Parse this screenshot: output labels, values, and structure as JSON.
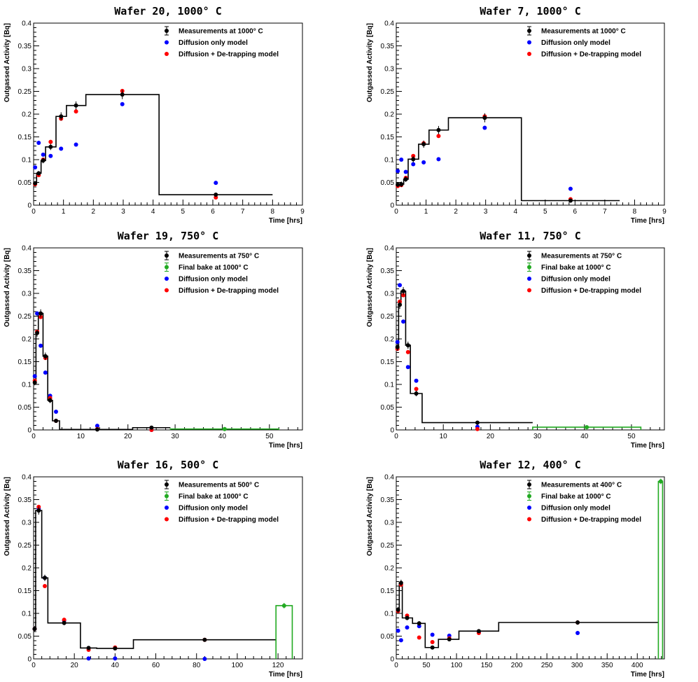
{
  "colors": {
    "measurement": "#000000",
    "final_bake": "#22aa22",
    "diffusion": "#0000ff",
    "detrapping": "#ff0000"
  },
  "chart_data": [
    {
      "type": "scatter",
      "title": "Wafer 20, 1000° C",
      "xlabel": "Time [hrs]",
      "ylabel": "Outgassed Activity [Bq]",
      "xlim": [
        0,
        9
      ],
      "ylim": [
        0,
        0.4
      ],
      "xticks": [
        0,
        1,
        2,
        3,
        4,
        5,
        6,
        7,
        8,
        9
      ],
      "xtick_labels": [
        "0",
        "1",
        "2",
        "3",
        "4",
        "5",
        "6",
        "7",
        "8",
        "9"
      ],
      "yticks": [
        0,
        0.05,
        0.1,
        0.15,
        0.2,
        0.25,
        0.3,
        0.35,
        0.4
      ],
      "ytick_labels": [
        "0",
        "0.05",
        "0.1",
        "0.15",
        "0.2",
        "0.25",
        "0.3",
        "0.35",
        "0.4"
      ],
      "legend": [
        "Measurements at 1000° C",
        "Diffusion only model",
        "Diffusion + De-trapping model"
      ],
      "measurement_steps": {
        "edges": [
          0,
          0.1,
          0.25,
          0.4,
          0.75,
          1.1,
          1.75,
          4.2,
          8.0
        ],
        "values": [
          0.048,
          0.07,
          0.098,
          0.128,
          0.195,
          0.219,
          0.243,
          0.023
        ]
      },
      "measurements": {
        "x": [
          0.05,
          0.17,
          0.32,
          0.57,
          0.92,
          1.42,
          2.97,
          6.1
        ],
        "y": [
          0.048,
          0.07,
          0.098,
          0.128,
          0.195,
          0.219,
          0.243,
          0.023
        ],
        "err": [
          0.005,
          0.005,
          0.006,
          0.007,
          0.009,
          0.009,
          0.01,
          0.003
        ]
      },
      "diffusion": {
        "x": [
          0.05,
          0.17,
          0.32,
          0.57,
          0.92,
          1.42,
          2.97,
          6.1
        ],
        "y": [
          0.083,
          0.137,
          0.111,
          0.108,
          0.124,
          0.133,
          0.222,
          0.049
        ]
      },
      "detrapping": {
        "x": [
          0.05,
          0.17,
          0.32,
          0.57,
          0.92,
          1.42,
          2.97,
          6.1
        ],
        "y": [
          0.046,
          0.066,
          0.1,
          0.139,
          0.19,
          0.206,
          0.251,
          0.017
        ]
      }
    },
    {
      "type": "scatter",
      "title": "Wafer 7, 1000° C",
      "xlabel": "Time [hrs]",
      "ylabel": "Outgassed Activity [Bq]",
      "xlim": [
        0,
        9
      ],
      "ylim": [
        0,
        0.4
      ],
      "xticks": [
        0,
        1,
        2,
        3,
        4,
        5,
        6,
        7,
        8,
        9
      ],
      "xtick_labels": [
        "0",
        "1",
        "2",
        "3",
        "4",
        "5",
        "6",
        "7",
        "8",
        "9"
      ],
      "yticks": [
        0,
        0.05,
        0.1,
        0.15,
        0.2,
        0.25,
        0.3,
        0.35,
        0.4
      ],
      "ytick_labels": [
        "0",
        "0.05",
        "0.1",
        "0.15",
        "0.2",
        "0.25",
        "0.3",
        "0.35",
        "0.4"
      ],
      "legend": [
        "Measurements at 1000° C",
        "Diffusion only model",
        "Diffusion + De-trapping model"
      ],
      "measurement_steps": {
        "edges": [
          0,
          0.1,
          0.25,
          0.4,
          0.75,
          1.1,
          1.75,
          4.2,
          7.5
        ],
        "values": [
          0.045,
          0.046,
          0.057,
          0.101,
          0.134,
          0.165,
          0.192,
          0.01
        ]
      },
      "measurements": {
        "x": [
          0.05,
          0.17,
          0.32,
          0.57,
          0.92,
          1.42,
          2.97,
          5.85
        ],
        "y": [
          0.045,
          0.046,
          0.057,
          0.101,
          0.134,
          0.165,
          0.192,
          0.01
        ],
        "err": [
          0.005,
          0.006,
          0.006,
          0.007,
          0.008,
          0.009,
          0.01,
          0.003
        ]
      },
      "diffusion": {
        "x": [
          0.05,
          0.17,
          0.32,
          0.57,
          0.92,
          1.42,
          2.97,
          5.85
        ],
        "y": [
          0.075,
          0.1,
          0.073,
          0.09,
          0.094,
          0.101,
          0.17,
          0.036
        ]
      },
      "detrapping": {
        "x": [
          0.05,
          0.17,
          0.32,
          0.57,
          0.92,
          1.42,
          2.97,
          5.85
        ],
        "y": [
          0.042,
          0.044,
          0.06,
          0.108,
          0.136,
          0.152,
          0.195,
          0.013
        ]
      }
    },
    {
      "type": "scatter",
      "title": "Wafer 19, 750° C",
      "xlabel": "Time [hrs]",
      "ylabel": "Outgassed Activity [Bq]",
      "xlim": [
        0,
        57
      ],
      "ylim": [
        0,
        0.4
      ],
      "xticks": [
        0,
        10,
        20,
        30,
        40,
        50
      ],
      "xtick_labels": [
        "0",
        "10",
        "20",
        "30",
        "40",
        "50"
      ],
      "yticks": [
        0,
        0.05,
        0.1,
        0.15,
        0.2,
        0.25,
        0.3,
        0.35,
        0.4
      ],
      "ytick_labels": [
        "0",
        "0.05",
        "0.1",
        "0.15",
        "0.2",
        "0.25",
        "0.3",
        "0.35",
        "0.4"
      ],
      "legend": [
        "Measurements at 750° C",
        "Final bake at 1000° C",
        "Diffusion only model",
        "Diffusion + De-trapping model"
      ],
      "measurement_steps": {
        "edges": [
          0,
          0.5,
          1.0,
          2.0,
          3.0,
          4.0,
          5.5,
          21.0,
          29.0
        ],
        "values": [
          0.104,
          0.213,
          0.256,
          0.162,
          0.065,
          0.02,
          0.001,
          0.005
        ]
      },
      "measurements": {
        "x": [
          0.25,
          0.75,
          1.5,
          2.5,
          3.5,
          4.75,
          13.5,
          25.0
        ],
        "y": [
          0.104,
          0.213,
          0.256,
          0.162,
          0.065,
          0.02,
          0.001,
          0.005
        ],
        "err": [
          0.006,
          0.008,
          0.009,
          0.008,
          0.006,
          0.004,
          0.001,
          0.002
        ]
      },
      "final_bake_steps": {
        "edges": [
          29.0,
          52.0
        ],
        "values": [
          0.002
        ]
      },
      "final_bake": {
        "x": [
          40.5
        ],
        "y": [
          0.002
        ],
        "err": [
          0.002
        ]
      },
      "diffusion": {
        "x": [
          0.25,
          0.75,
          1.5,
          2.5,
          3.5,
          4.75,
          13.5,
          25.0
        ],
        "y": [
          0.118,
          0.256,
          0.185,
          0.126,
          0.075,
          0.04,
          0.009,
          0.0
        ]
      },
      "detrapping": {
        "x": [
          0.25,
          0.75,
          1.5,
          2.5,
          3.5,
          4.75,
          13.5,
          25.0
        ],
        "y": [
          0.108,
          0.216,
          0.248,
          0.158,
          0.07,
          0.02,
          0.002,
          0.0
        ]
      }
    },
    {
      "type": "scatter",
      "title": "Wafer 11, 750° C",
      "xlabel": "Time [hrs]",
      "ylabel": "Outgassed Activity [Bq]",
      "xlim": [
        0,
        57
      ],
      "ylim": [
        0,
        0.4
      ],
      "xticks": [
        0,
        10,
        20,
        30,
        40,
        50
      ],
      "xtick_labels": [
        "0",
        "10",
        "20",
        "30",
        "40",
        "50"
      ],
      "yticks": [
        0,
        0.05,
        0.1,
        0.15,
        0.2,
        0.25,
        0.3,
        0.35,
        0.4
      ],
      "ytick_labels": [
        "0",
        "0.05",
        "0.1",
        "0.15",
        "0.2",
        "0.25",
        "0.3",
        "0.35",
        "0.4"
      ],
      "legend": [
        "Measurements at 750° C",
        "Final bake at 1000° C",
        "Diffusion only model",
        "Diffusion + De-trapping model"
      ],
      "measurement_steps": {
        "edges": [
          0,
          0.5,
          1.0,
          2.0,
          3.0,
          5.5,
          29.0
        ],
        "values": [
          0.182,
          0.275,
          0.305,
          0.186,
          0.08,
          0.016
        ]
      },
      "measurements": {
        "x": [
          0.25,
          0.75,
          1.5,
          2.5,
          4.25,
          17.25
        ],
        "y": [
          0.182,
          0.275,
          0.305,
          0.186,
          0.08,
          0.016
        ],
        "err": [
          0.008,
          0.009,
          0.009,
          0.008,
          0.006,
          0.003
        ]
      },
      "final_bake_steps": {
        "edges": [
          29.0,
          52.0
        ],
        "values": [
          0.006
        ]
      },
      "final_bake": {
        "x": [
          40.5
        ],
        "y": [
          0.006
        ],
        "err": [
          0.002
        ]
      },
      "diffusion": {
        "x": [
          0.25,
          0.75,
          1.5,
          2.5,
          4.25,
          17.25
        ],
        "y": [
          0.193,
          0.318,
          0.238,
          0.138,
          0.108,
          0.007
        ]
      },
      "detrapping": {
        "x": [
          0.25,
          0.75,
          1.5,
          2.5,
          4.25,
          17.25
        ],
        "y": [
          0.178,
          0.282,
          0.296,
          0.171,
          0.09,
          0.002
        ]
      }
    },
    {
      "type": "scatter",
      "title": "Wafer 16, 500° C",
      "xlabel": "Time [hrs]",
      "ylabel": "Outgassed Activity [Bq]",
      "xlim": [
        0,
        132
      ],
      "ylim": [
        0,
        0.4
      ],
      "xticks": [
        0,
        20,
        40,
        60,
        80,
        100,
        120
      ],
      "xtick_labels": [
        "0",
        "20",
        "40",
        "60",
        "80",
        "100",
        "120"
      ],
      "yticks": [
        0,
        0.05,
        0.1,
        0.15,
        0.2,
        0.25,
        0.3,
        0.35,
        0.4
      ],
      "ytick_labels": [
        "0",
        "0.05",
        "0.1",
        "0.15",
        "0.2",
        "0.25",
        "0.3",
        "0.35",
        "0.4"
      ],
      "legend": [
        "Measurements at 500° C",
        "Final bake at 1000° C",
        "Diffusion only model",
        "Diffusion + De-trapping model"
      ],
      "measurement_steps": {
        "edges": [
          0,
          1.0,
          4.0,
          7.0,
          23.0,
          31.0,
          49.0,
          119.0
        ],
        "values": [
          0.066,
          0.326,
          0.178,
          0.079,
          0.024,
          0.023,
          0.042
        ]
      },
      "measurements": {
        "x": [
          0.5,
          2.5,
          5.5,
          15.0,
          27.0,
          40.0,
          84.0
        ],
        "y": [
          0.066,
          0.326,
          0.178,
          0.079,
          0.024,
          0.023,
          0.042
        ],
        "err": [
          0.006,
          0.009,
          0.007,
          0.005,
          0.003,
          0.003,
          0.004
        ]
      },
      "final_bake_steps": {
        "edges": [
          119.0,
          127.0
        ],
        "values": [
          0.117
        ]
      },
      "final_bake": {
        "x": [
          123.0
        ],
        "y": [
          0.117
        ],
        "err": [
          0.006
        ]
      },
      "diffusion": {
        "x": [
          0.5,
          2.5,
          5.5,
          15.0,
          27.0,
          40.0,
          84.0
        ],
        "y": [
          0.066,
          0.33,
          0.178,
          0.084,
          0.001,
          0.001,
          0.0
        ]
      },
      "detrapping": {
        "x": [
          0.5,
          2.5,
          5.5,
          15.0,
          27.0,
          40.0,
          84.0
        ],
        "y": [
          0.066,
          0.334,
          0.16,
          0.086,
          0.02,
          0.025,
          0.042
        ]
      }
    },
    {
      "type": "scatter",
      "title": "Wafer 12, 400° C",
      "xlabel": "Time [hrs]",
      "ylabel": "Outgassed Activity [Bq]",
      "xlim": [
        0,
        445
      ],
      "ylim": [
        0,
        0.4
      ],
      "xticks": [
        0,
        50,
        100,
        150,
        200,
        250,
        300,
        350,
        400
      ],
      "xtick_labels": [
        "0",
        "50",
        "100",
        "150",
        "200",
        "250",
        "300",
        "350",
        "400"
      ],
      "yticks": [
        0,
        0.05,
        0.1,
        0.15,
        0.2,
        0.25,
        0.3,
        0.35,
        0.4
      ],
      "ytick_labels": [
        "0",
        "0.05",
        "0.1",
        "0.15",
        "0.2",
        "0.25",
        "0.3",
        "0.35",
        "0.4"
      ],
      "legend": [
        "Measurements at 400° C",
        "Final bake at 1000° C",
        "Diffusion only model",
        "Diffusion + De-trapping model"
      ],
      "measurement_steps": {
        "edges": [
          0,
          5,
          10,
          27,
          48,
          70,
          104,
          170,
          435
        ],
        "values": [
          0.108,
          0.167,
          0.09,
          0.078,
          0.025,
          0.043,
          0.061,
          0.08
        ]
      },
      "measurements": {
        "x": [
          3,
          8,
          18,
          38,
          60,
          88,
          137,
          301
        ],
        "y": [
          0.108,
          0.167,
          0.09,
          0.078,
          0.025,
          0.043,
          0.061,
          0.08
        ],
        "err": [
          0.006,
          0.007,
          0.005,
          0.005,
          0.003,
          0.004,
          0.004,
          0.005
        ]
      },
      "final_bake_steps": {
        "edges": [
          435,
          442
        ],
        "values": [
          0.39
        ]
      },
      "final_bake": {
        "x": [
          439
        ],
        "y": [
          0.39
        ],
        "err": [
          0.006
        ]
      },
      "diffusion": {
        "x": [
          3,
          8,
          18,
          38,
          60,
          88,
          137,
          301
        ],
        "y": [
          0.062,
          0.041,
          0.069,
          0.072,
          0.053,
          0.051,
          0.059,
          0.057
        ]
      },
      "detrapping": {
        "x": [
          3,
          8,
          18,
          38,
          60,
          88,
          137,
          301
        ],
        "y": [
          0.105,
          0.163,
          0.095,
          0.047,
          0.037,
          0.045,
          0.057,
          0.08
        ]
      }
    }
  ]
}
